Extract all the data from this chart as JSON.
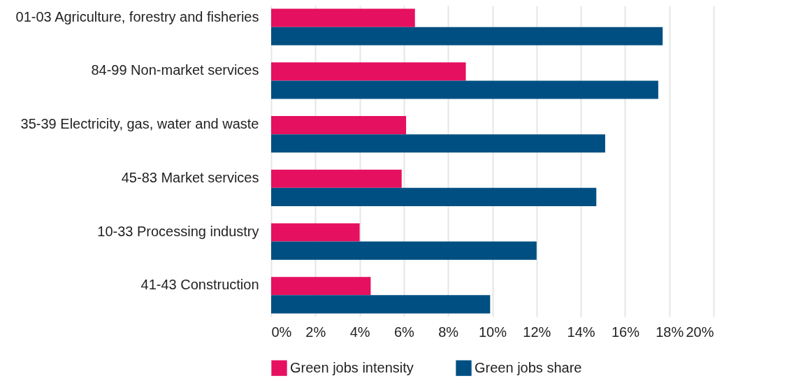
{
  "chart_data": {
    "type": "bar",
    "orientation": "horizontal",
    "categories": [
      "01-03 Agriculture, forestry and fisheries",
      "84-99 Non-market services",
      "35-39 Electricity, gas, water and waste",
      "45-83 Market services",
      "10-33 Processing industry",
      "41-43 Construction"
    ],
    "series": [
      {
        "name": "Green jobs intensity",
        "color": "#e5105f",
        "values": [
          6.5,
          8.8,
          6.1,
          5.9,
          4.0,
          4.5
        ]
      },
      {
        "name": "Green jobs share",
        "color": "#004f82",
        "values": [
          17.7,
          17.5,
          15.1,
          14.7,
          12.0,
          9.9
        ]
      }
    ],
    "xlim": [
      0,
      20
    ],
    "xticks": [
      {
        "value": 0,
        "label": "0%"
      },
      {
        "value": 2,
        "label": "2%"
      },
      {
        "value": 4,
        "label": "4%"
      },
      {
        "value": 6,
        "label": "6%"
      },
      {
        "value": 8,
        "label": "8%"
      },
      {
        "value": 10,
        "label": "10%"
      },
      {
        "value": 12,
        "label": "12%"
      },
      {
        "value": 14,
        "label": "14%"
      },
      {
        "value": 16,
        "label": "16%"
      },
      {
        "value": 18,
        "label": "18%"
      },
      {
        "value": 20,
        "label": "20%"
      }
    ],
    "grid": "x",
    "legend": "bottom"
  }
}
